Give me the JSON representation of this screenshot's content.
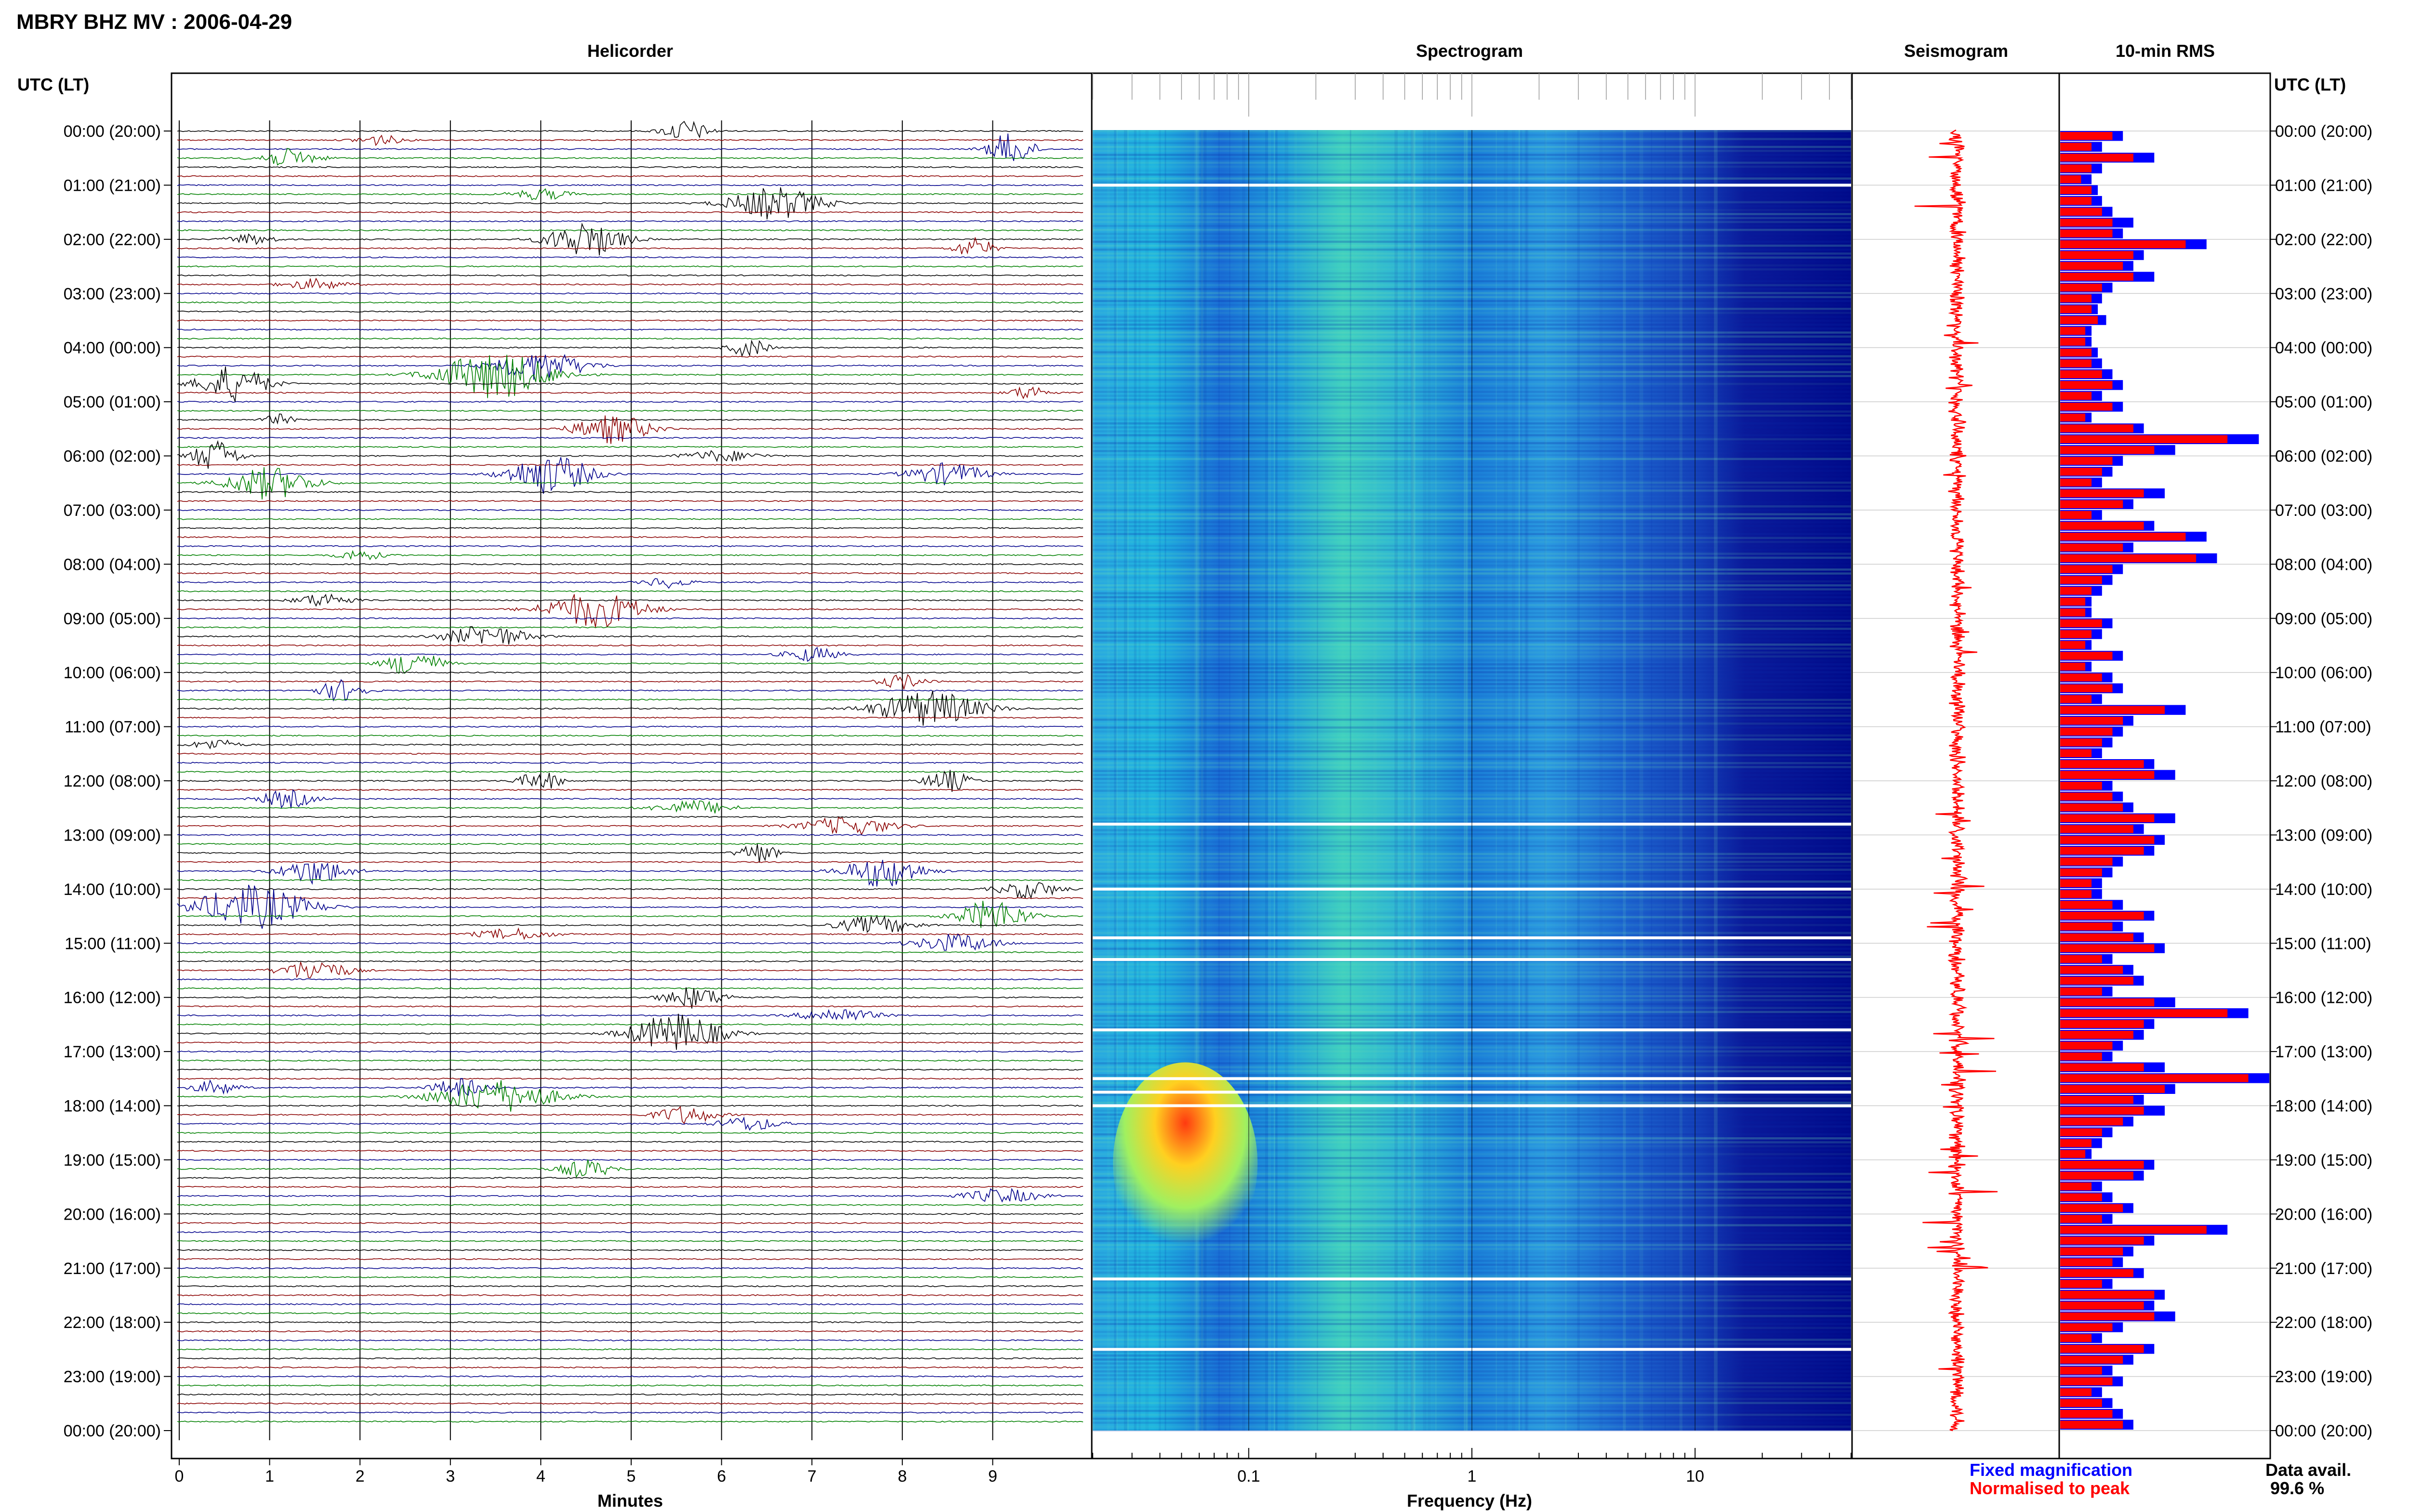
{
  "title": "MBRY BHZ MV : 2006-04-29",
  "axis_left_label": "UTC (LT)",
  "axis_right_label": "UTC (LT)",
  "time_labels": [
    "00:00 (20:00)",
    "01:00 (21:00)",
    "02:00 (22:00)",
    "03:00 (23:00)",
    "04:00 (00:00)",
    "05:00 (01:00)",
    "06:00 (02:00)",
    "07:00 (03:00)",
    "08:00 (04:00)",
    "09:00 (05:00)",
    "10:00 (06:00)",
    "11:00 (07:00)",
    "12:00 (08:00)",
    "13:00 (09:00)",
    "14:00 (10:00)",
    "15:00 (11:00)",
    "16:00 (12:00)",
    "17:00 (13:00)",
    "18:00 (14:00)",
    "19:00 (15:00)",
    "20:00 (16:00)",
    "21:00 (17:00)",
    "22:00 (18:00)",
    "23:00 (19:00)",
    "00:00 (20:00)"
  ],
  "panels": {
    "helicorder": {
      "title": "Helicorder",
      "xlabel": "Minutes",
      "x_ticks": [
        "0",
        "1",
        "2",
        "3",
        "4",
        "5",
        "6",
        "7",
        "8",
        "9"
      ]
    },
    "spectrogram": {
      "title": "Spectrogram",
      "xlabel": "Frequency (Hz)",
      "x_ticks": [
        "0.1",
        "1",
        "10"
      ]
    },
    "seismogram": {
      "title": "Seismogram"
    },
    "rms": {
      "title": "10-min RMS"
    }
  },
  "legend": {
    "fixed": "Fixed magnification",
    "normalised": "Normalised to peak"
  },
  "data_avail": {
    "label": "Data avail.",
    "value": "99.6 %"
  },
  "colors": {
    "black": "#000000",
    "red": "#8b0000",
    "green": "#008000",
    "blue": "#00008b",
    "legend_blue": "#0000ff",
    "legend_red": "#ff0000"
  },
  "chart_data": [
    {
      "type": "line",
      "title": "Helicorder",
      "xlabel": "Minutes",
      "xlim": [
        0,
        10
      ],
      "rows": 144,
      "row_minutes": 10,
      "events": [
        {
          "row": 0,
          "minute": 5.6,
          "amp": 0.6,
          "dur": 0.6
        },
        {
          "row": 1,
          "minute": 2.2,
          "amp": 0.3,
          "dur": 0.6
        },
        {
          "row": 2,
          "minute": 9.2,
          "amp": 0.9,
          "dur": 0.6
        },
        {
          "row": 3,
          "minute": 1.2,
          "amp": 0.5,
          "dur": 0.8
        },
        {
          "row": 8,
          "minute": 6.6,
          "amp": 0.9,
          "dur": 1.2
        },
        {
          "row": 7,
          "minute": 4.0,
          "amp": 0.3,
          "dur": 0.8
        },
        {
          "row": 12,
          "minute": 4.5,
          "amp": 1.0,
          "dur": 1.0
        },
        {
          "row": 13,
          "minute": 8.8,
          "amp": 0.6,
          "dur": 0.5
        },
        {
          "row": 12,
          "minute": 0.8,
          "amp": 0.3,
          "dur": 0.6
        },
        {
          "row": 17,
          "minute": 1.5,
          "amp": 0.3,
          "dur": 0.8
        },
        {
          "row": 24,
          "minute": 6.3,
          "amp": 0.5,
          "dur": 0.5
        },
        {
          "row": 26,
          "minute": 4.0,
          "amp": 0.8,
          "dur": 1.2
        },
        {
          "row": 27,
          "minute": 3.5,
          "amp": 1.3,
          "dur": 1.5
        },
        {
          "row": 28,
          "minute": 0.6,
          "amp": 1.0,
          "dur": 0.9
        },
        {
          "row": 29,
          "minute": 9.4,
          "amp": 0.4,
          "dur": 0.5
        },
        {
          "row": 32,
          "minute": 1.1,
          "amp": 0.3,
          "dur": 0.4
        },
        {
          "row": 33,
          "minute": 4.8,
          "amp": 0.8,
          "dur": 1.0
        },
        {
          "row": 36,
          "minute": 0.4,
          "amp": 0.9,
          "dur": 0.6
        },
        {
          "row": 36,
          "minute": 6.0,
          "amp": 0.3,
          "dur": 1.0
        },
        {
          "row": 38,
          "minute": 4.1,
          "amp": 1.1,
          "dur": 1.1
        },
        {
          "row": 38,
          "minute": 8.5,
          "amp": 0.6,
          "dur": 1.0
        },
        {
          "row": 39,
          "minute": 1.0,
          "amp": 0.9,
          "dur": 1.1
        },
        {
          "row": 47,
          "minute": 2.0,
          "amp": 0.3,
          "dur": 0.6
        },
        {
          "row": 50,
          "minute": 5.4,
          "amp": 0.3,
          "dur": 0.6
        },
        {
          "row": 53,
          "minute": 4.6,
          "amp": 1.0,
          "dur": 1.3
        },
        {
          "row": 52,
          "minute": 1.6,
          "amp": 0.4,
          "dur": 0.7
        },
        {
          "row": 56,
          "minute": 3.4,
          "amp": 0.6,
          "dur": 1.1
        },
        {
          "row": 59,
          "minute": 2.6,
          "amp": 0.8,
          "dur": 0.7
        },
        {
          "row": 58,
          "minute": 7.0,
          "amp": 0.4,
          "dur": 0.7
        },
        {
          "row": 61,
          "minute": 8.0,
          "amp": 0.4,
          "dur": 0.6
        },
        {
          "row": 62,
          "minute": 1.8,
          "amp": 0.6,
          "dur": 0.6
        },
        {
          "row": 64,
          "minute": 8.3,
          "amp": 1.0,
          "dur": 1.4
        },
        {
          "row": 68,
          "minute": 0.4,
          "amp": 0.3,
          "dur": 0.6
        },
        {
          "row": 72,
          "minute": 4.0,
          "amp": 0.5,
          "dur": 0.6
        },
        {
          "row": 72,
          "minute": 8.5,
          "amp": 0.6,
          "dur": 0.6
        },
        {
          "row": 74,
          "minute": 1.2,
          "amp": 0.5,
          "dur": 0.7
        },
        {
          "row": 75,
          "minute": 5.7,
          "amp": 0.4,
          "dur": 1.0
        },
        {
          "row": 77,
          "minute": 7.4,
          "amp": 0.5,
          "dur": 1.2
        },
        {
          "row": 80,
          "minute": 6.4,
          "amp": 0.6,
          "dur": 0.5
        },
        {
          "row": 82,
          "minute": 1.5,
          "amp": 0.7,
          "dur": 0.9
        },
        {
          "row": 82,
          "minute": 7.8,
          "amp": 0.9,
          "dur": 1.0
        },
        {
          "row": 84,
          "minute": 9.4,
          "amp": 0.5,
          "dur": 0.8
        },
        {
          "row": 86,
          "minute": 0.8,
          "amp": 1.2,
          "dur": 1.5
        },
        {
          "row": 87,
          "minute": 9.0,
          "amp": 0.9,
          "dur": 0.9
        },
        {
          "row": 88,
          "minute": 7.7,
          "amp": 0.5,
          "dur": 1.0
        },
        {
          "row": 89,
          "minute": 3.7,
          "amp": 0.3,
          "dur": 1.0
        },
        {
          "row": 90,
          "minute": 8.6,
          "amp": 0.5,
          "dur": 1.1
        },
        {
          "row": 93,
          "minute": 1.5,
          "amp": 0.6,
          "dur": 0.9
        },
        {
          "row": 96,
          "minute": 5.7,
          "amp": 0.6,
          "dur": 0.8
        },
        {
          "row": 98,
          "minute": 7.3,
          "amp": 0.4,
          "dur": 1.0
        },
        {
          "row": 100,
          "minute": 5.5,
          "amp": 1.1,
          "dur": 1.2
        },
        {
          "row": 106,
          "minute": 3.1,
          "amp": 0.5,
          "dur": 0.7
        },
        {
          "row": 106,
          "minute": 0.4,
          "amp": 0.4,
          "dur": 0.6
        },
        {
          "row": 107,
          "minute": 3.5,
          "amp": 0.9,
          "dur": 1.6
        },
        {
          "row": 110,
          "minute": 6.3,
          "amp": 0.4,
          "dur": 0.8
        },
        {
          "row": 109,
          "minute": 5.6,
          "amp": 0.5,
          "dur": 0.8
        },
        {
          "row": 115,
          "minute": 4.5,
          "amp": 0.5,
          "dur": 0.7
        },
        {
          "row": 118,
          "minute": 9.1,
          "amp": 0.4,
          "dur": 1.0
        }
      ]
    },
    {
      "type": "heatmap",
      "title": "Spectrogram",
      "xlabel": "Frequency (Hz)",
      "xscale": "log",
      "xlim": [
        0.02,
        50
      ],
      "colormap": "jet",
      "hot_spot": {
        "hour": 18.0,
        "freq_range": [
          0.03,
          0.09
        ]
      }
    },
    {
      "type": "line",
      "title": "Seismogram"
    },
    {
      "type": "bar",
      "title": "10-min RMS",
      "orientation": "horizontal",
      "series": [
        {
          "name": "Fixed magnification",
          "values": [
            0.3,
            0.2,
            0.45,
            0.2,
            0.15,
            0.18,
            0.2,
            0.25,
            0.35,
            0.3,
            0.7,
            0.4,
            0.35,
            0.45,
            0.25,
            0.2,
            0.18,
            0.22,
            0.15,
            0.15,
            0.18,
            0.2,
            0.25,
            0.3,
            0.2,
            0.3,
            0.15,
            0.4,
            0.95,
            0.55,
            0.3,
            0.25,
            0.2,
            0.5,
            0.35,
            0.2,
            0.45,
            0.7,
            0.35,
            0.75,
            0.3,
            0.25,
            0.2,
            0.15,
            0.15,
            0.25,
            0.2,
            0.15,
            0.3,
            0.15,
            0.25,
            0.3,
            0.2,
            0.6,
            0.35,
            0.3,
            0.25,
            0.2,
            0.45,
            0.55,
            0.25,
            0.3,
            0.35,
            0.55,
            0.4,
            0.5,
            0.45,
            0.3,
            0.25,
            0.2,
            0.2,
            0.3,
            0.45,
            0.3,
            0.4,
            0.5,
            0.25,
            0.35,
            0.4,
            0.25,
            0.55,
            0.9,
            0.45,
            0.4,
            0.3,
            0.25,
            0.5,
            1.0,
            0.55,
            0.4,
            0.5,
            0.35,
            0.25,
            0.2,
            0.15,
            0.45,
            0.4,
            0.2,
            0.25,
            0.35,
            0.25,
            0.8,
            0.45,
            0.35,
            0.3,
            0.4,
            0.25,
            0.5,
            0.45,
            0.55,
            0.3,
            0.2,
            0.45,
            0.35,
            0.25,
            0.3,
            0.2,
            0.25,
            0.3,
            0.35
          ]
        },
        {
          "name": "Normalised to peak",
          "values": [
            0.25,
            0.15,
            0.35,
            0.15,
            0.1,
            0.15,
            0.15,
            0.2,
            0.25,
            0.25,
            0.6,
            0.35,
            0.3,
            0.35,
            0.2,
            0.15,
            0.15,
            0.18,
            0.12,
            0.12,
            0.15,
            0.15,
            0.2,
            0.25,
            0.15,
            0.25,
            0.12,
            0.35,
            0.8,
            0.45,
            0.25,
            0.2,
            0.15,
            0.4,
            0.3,
            0.15,
            0.4,
            0.6,
            0.3,
            0.65,
            0.25,
            0.2,
            0.15,
            0.12,
            0.12,
            0.2,
            0.15,
            0.12,
            0.25,
            0.12,
            0.2,
            0.25,
            0.15,
            0.5,
            0.3,
            0.25,
            0.2,
            0.15,
            0.4,
            0.45,
            0.2,
            0.25,
            0.3,
            0.45,
            0.35,
            0.45,
            0.4,
            0.25,
            0.2,
            0.15,
            0.15,
            0.25,
            0.4,
            0.25,
            0.35,
            0.45,
            0.2,
            0.3,
            0.35,
            0.2,
            0.45,
            0.8,
            0.4,
            0.35,
            0.25,
            0.2,
            0.4,
            0.9,
            0.5,
            0.35,
            0.4,
            0.3,
            0.2,
            0.15,
            0.12,
            0.4,
            0.35,
            0.15,
            0.2,
            0.3,
            0.2,
            0.7,
            0.4,
            0.3,
            0.25,
            0.35,
            0.2,
            0.45,
            0.4,
            0.45,
            0.25,
            0.15,
            0.4,
            0.3,
            0.2,
            0.25,
            0.15,
            0.2,
            0.25,
            0.3
          ]
        }
      ]
    }
  ]
}
